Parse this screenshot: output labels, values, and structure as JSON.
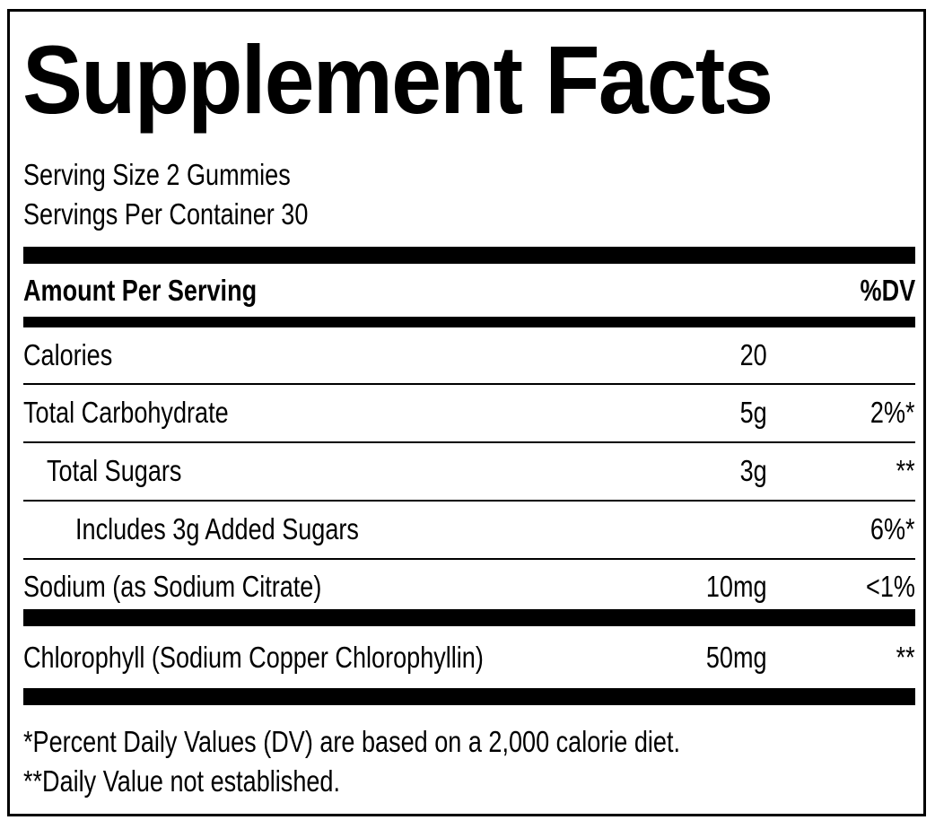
{
  "label": {
    "title": "Supplement Facts",
    "serving_size": "Serving Size 2 Gummies",
    "servings_per_container": "Servings Per Container 30",
    "header": {
      "amount_per_serving": "Amount Per Serving",
      "dv": "%DV"
    },
    "rows": [
      {
        "name": "Calories",
        "amount": "20",
        "dv": ""
      },
      {
        "name": "Total Carbohydrate",
        "amount": "5g",
        "dv": "2%*"
      },
      {
        "name": "Total Sugars",
        "amount": "3g",
        "dv": "**"
      },
      {
        "name": "Includes 3g Added Sugars",
        "amount": "",
        "dv": "6%*"
      },
      {
        "name": "Sodium (as Sodium Citrate)",
        "amount": "10mg",
        "dv": "<1%"
      },
      {
        "name": "Chlorophyll (Sodium Copper Chlorophyllin)",
        "amount": "50mg",
        "dv": "**"
      }
    ],
    "footnotes": [
      "*Percent Daily Values (DV) are based on a 2,000 calorie diet.",
      "**Daily Value not established."
    ]
  },
  "colors": {
    "text": "#000000",
    "background": "#ffffff"
  }
}
